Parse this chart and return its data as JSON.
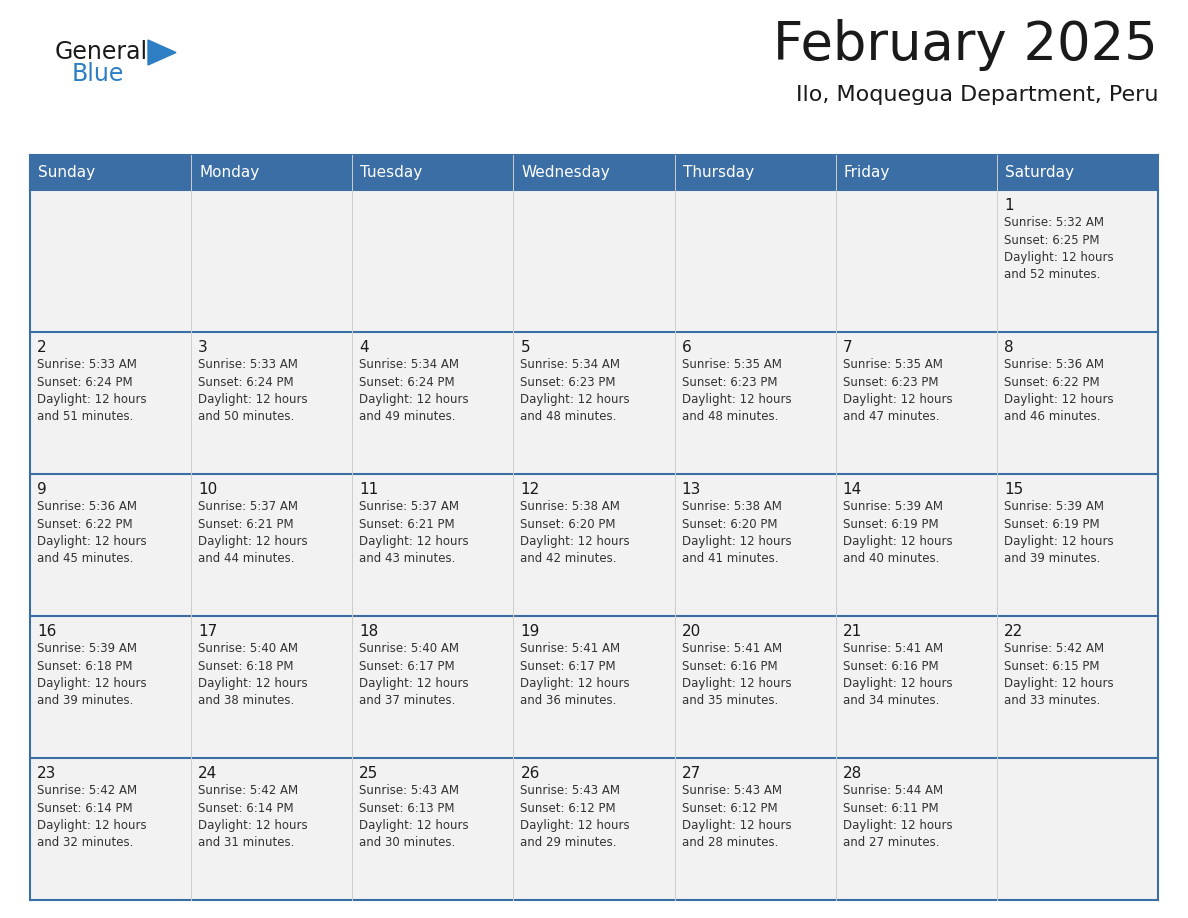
{
  "title": "February 2025",
  "subtitle": "Ilo, Moquegua Department, Peru",
  "header_bg": "#3A6EA5",
  "header_text_color": "#FFFFFF",
  "cell_bg": "#FFFFFF",
  "cell_bg_alt": "#F2F2F2",
  "border_color_strong": "#3A6EA5",
  "border_color_light": "#CCCCCC",
  "text_color_dark": "#1a1a1a",
  "text_color_cell": "#333333",
  "days_of_week": [
    "Sunday",
    "Monday",
    "Tuesday",
    "Wednesday",
    "Thursday",
    "Friday",
    "Saturday"
  ],
  "weeks": [
    [
      {
        "day": "",
        "info": ""
      },
      {
        "day": "",
        "info": ""
      },
      {
        "day": "",
        "info": ""
      },
      {
        "day": "",
        "info": ""
      },
      {
        "day": "",
        "info": ""
      },
      {
        "day": "",
        "info": ""
      },
      {
        "day": "1",
        "info": "Sunrise: 5:32 AM\nSunset: 6:25 PM\nDaylight: 12 hours\nand 52 minutes."
      }
    ],
    [
      {
        "day": "2",
        "info": "Sunrise: 5:33 AM\nSunset: 6:24 PM\nDaylight: 12 hours\nand 51 minutes."
      },
      {
        "day": "3",
        "info": "Sunrise: 5:33 AM\nSunset: 6:24 PM\nDaylight: 12 hours\nand 50 minutes."
      },
      {
        "day": "4",
        "info": "Sunrise: 5:34 AM\nSunset: 6:24 PM\nDaylight: 12 hours\nand 49 minutes."
      },
      {
        "day": "5",
        "info": "Sunrise: 5:34 AM\nSunset: 6:23 PM\nDaylight: 12 hours\nand 48 minutes."
      },
      {
        "day": "6",
        "info": "Sunrise: 5:35 AM\nSunset: 6:23 PM\nDaylight: 12 hours\nand 48 minutes."
      },
      {
        "day": "7",
        "info": "Sunrise: 5:35 AM\nSunset: 6:23 PM\nDaylight: 12 hours\nand 47 minutes."
      },
      {
        "day": "8",
        "info": "Sunrise: 5:36 AM\nSunset: 6:22 PM\nDaylight: 12 hours\nand 46 minutes."
      }
    ],
    [
      {
        "day": "9",
        "info": "Sunrise: 5:36 AM\nSunset: 6:22 PM\nDaylight: 12 hours\nand 45 minutes."
      },
      {
        "day": "10",
        "info": "Sunrise: 5:37 AM\nSunset: 6:21 PM\nDaylight: 12 hours\nand 44 minutes."
      },
      {
        "day": "11",
        "info": "Sunrise: 5:37 AM\nSunset: 6:21 PM\nDaylight: 12 hours\nand 43 minutes."
      },
      {
        "day": "12",
        "info": "Sunrise: 5:38 AM\nSunset: 6:20 PM\nDaylight: 12 hours\nand 42 minutes."
      },
      {
        "day": "13",
        "info": "Sunrise: 5:38 AM\nSunset: 6:20 PM\nDaylight: 12 hours\nand 41 minutes."
      },
      {
        "day": "14",
        "info": "Sunrise: 5:39 AM\nSunset: 6:19 PM\nDaylight: 12 hours\nand 40 minutes."
      },
      {
        "day": "15",
        "info": "Sunrise: 5:39 AM\nSunset: 6:19 PM\nDaylight: 12 hours\nand 39 minutes."
      }
    ],
    [
      {
        "day": "16",
        "info": "Sunrise: 5:39 AM\nSunset: 6:18 PM\nDaylight: 12 hours\nand 39 minutes."
      },
      {
        "day": "17",
        "info": "Sunrise: 5:40 AM\nSunset: 6:18 PM\nDaylight: 12 hours\nand 38 minutes."
      },
      {
        "day": "18",
        "info": "Sunrise: 5:40 AM\nSunset: 6:17 PM\nDaylight: 12 hours\nand 37 minutes."
      },
      {
        "day": "19",
        "info": "Sunrise: 5:41 AM\nSunset: 6:17 PM\nDaylight: 12 hours\nand 36 minutes."
      },
      {
        "day": "20",
        "info": "Sunrise: 5:41 AM\nSunset: 6:16 PM\nDaylight: 12 hours\nand 35 minutes."
      },
      {
        "day": "21",
        "info": "Sunrise: 5:41 AM\nSunset: 6:16 PM\nDaylight: 12 hours\nand 34 minutes."
      },
      {
        "day": "22",
        "info": "Sunrise: 5:42 AM\nSunset: 6:15 PM\nDaylight: 12 hours\nand 33 minutes."
      }
    ],
    [
      {
        "day": "23",
        "info": "Sunrise: 5:42 AM\nSunset: 6:14 PM\nDaylight: 12 hours\nand 32 minutes."
      },
      {
        "day": "24",
        "info": "Sunrise: 5:42 AM\nSunset: 6:14 PM\nDaylight: 12 hours\nand 31 minutes."
      },
      {
        "day": "25",
        "info": "Sunrise: 5:43 AM\nSunset: 6:13 PM\nDaylight: 12 hours\nand 30 minutes."
      },
      {
        "day": "26",
        "info": "Sunrise: 5:43 AM\nSunset: 6:12 PM\nDaylight: 12 hours\nand 29 minutes."
      },
      {
        "day": "27",
        "info": "Sunrise: 5:43 AM\nSunset: 6:12 PM\nDaylight: 12 hours\nand 28 minutes."
      },
      {
        "day": "28",
        "info": "Sunrise: 5:44 AM\nSunset: 6:11 PM\nDaylight: 12 hours\nand 27 minutes."
      },
      {
        "day": "",
        "info": ""
      }
    ]
  ],
  "logo_general_color": "#1a1a1a",
  "logo_blue_color": "#2E7EC4",
  "logo_triangle_color": "#2E7EC4"
}
